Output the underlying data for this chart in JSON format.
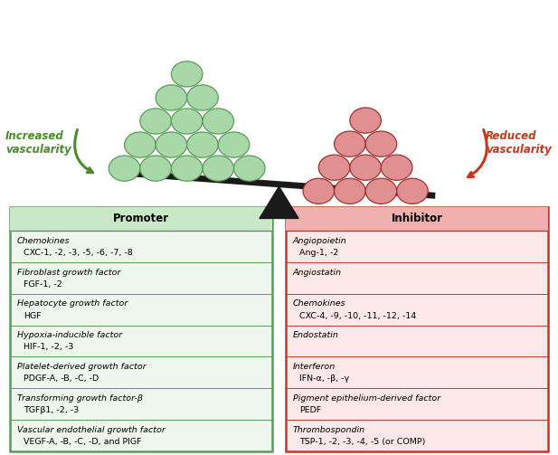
{
  "promoter_title": "Promoter",
  "inhibitor_title": "Inhibitor",
  "promoter_entries": [
    [
      "Chemokines",
      "CXC-1, -2, -3, -5, -6, -7, -8"
    ],
    [
      "Fibroblast growth factor",
      "FGF-1, -2"
    ],
    [
      "Hepatocyte growth factor",
      "HGF"
    ],
    [
      "Hypoxia-inducible factor",
      "HIF-1, -2, -3"
    ],
    [
      "Platelet-derived growth factor",
      "PDGF-A, -B, -C, -D"
    ],
    [
      "Transforming growth factor-β",
      "TGFβ1, -2, -3"
    ],
    [
      "Vascular endothelial growth factor",
      "VEGF-A, -B, -C, -D, and PlGF"
    ]
  ],
  "inhibitor_entries": [
    [
      "Angiopoietin",
      "Ang-1, -2"
    ],
    [
      "Angiostatin",
      ""
    ],
    [
      "Chemokines",
      "CXC-4, -9, -10, -11, -12, -14"
    ],
    [
      "Endostatin",
      ""
    ],
    [
      "Interferon",
      "IFN-α, -β, -γ"
    ],
    [
      "Pigment epithelium-derived factor",
      "PEDF"
    ],
    [
      "Thrombospondin",
      "TSP-1, -2, -3, -4, -5 (or COMP)"
    ]
  ],
  "promoter_box_color": "#eef7ee",
  "promoter_border_color": "#5a9a5a",
  "promoter_header_color": "#c8e8c8",
  "inhibitor_box_color": "#fce8e8",
  "inhibitor_border_color": "#c0392b",
  "inhibitor_header_color": "#f0b0b0",
  "green_circle_fill": "#a8d8a8",
  "green_circle_edge": "#5a9a5a",
  "red_circle_fill": "#e09090",
  "red_circle_edge": "#a03030",
  "green_text_color": "#4a8c2a",
  "red_text_color": "#c0391b",
  "background_color": "#ffffff",
  "bar_color": "#1a1a1a",
  "triangle_color": "#1a1a1a"
}
